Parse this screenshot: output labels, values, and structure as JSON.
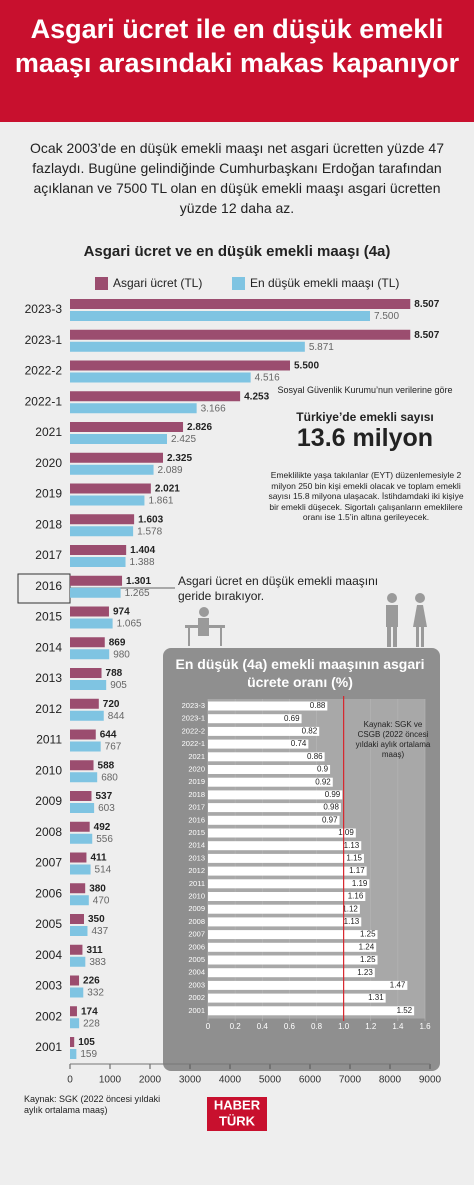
{
  "header": {
    "title": "Asgari ücret ile en düşük emekli maaşı arasındaki makas kapanıyor"
  },
  "intro": "Ocak 2003’de en düşük emekli maaşı net asgari ücretten yüzde 47 fazlaydı. Bugüne gelindiğinde Cumhurbaşkanı Erdoğan tarafından açıklanan ve 7500 TL olan en düşük emekli maaşı asgari ücretten yüzde 12 daha az.",
  "chart_data": [
    {
      "type": "hbar",
      "title": "Asgari ücret ve en düşük emekli maaşı (4a)",
      "categories": [
        "2023-3",
        "2023-1",
        "2022-2",
        "2022-1",
        "2021",
        "2020",
        "2019",
        "2018",
        "2017",
        "2016",
        "2015",
        "2014",
        "2013",
        "2012",
        "2011",
        "2010",
        "2009",
        "2008",
        "2007",
        "2006",
        "2005",
        "2004",
        "2003",
        "2002",
        "2001"
      ],
      "series": [
        {
          "name": "Asgari ücret (TL)",
          "color": "#9b4d6f",
          "values": [
            8507,
            8507,
            5500,
            4253,
            2826,
            2325,
            2021,
            1603,
            1404,
            1301,
            974,
            869,
            788,
            720,
            644,
            588,
            537,
            492,
            411,
            380,
            350,
            311,
            226,
            174,
            105
          ],
          "value_labels": [
            "8.507",
            "8.507",
            "5.500",
            "4.253",
            "2.826",
            "2.325",
            "2.021",
            "1.603",
            "1.404",
            "1.301",
            "974",
            "869",
            "788",
            "720",
            "644",
            "588",
            "537",
            "492",
            "411",
            "380",
            "350",
            "311",
            "226",
            "174",
            "105"
          ]
        },
        {
          "name": "En düşük emekli maaşı (TL)",
          "color": "#7fc4e2",
          "values": [
            7500,
            5871,
            4516,
            3166,
            2425,
            2089,
            1861,
            1578,
            1388,
            1265,
            1065,
            980,
            905,
            844,
            767,
            680,
            603,
            556,
            514,
            470,
            437,
            383,
            332,
            228,
            159
          ],
          "value_labels": [
            "7.500",
            "5.871",
            "4.516",
            "3.166",
            "2.425",
            "2.089",
            "1.861",
            "1.578",
            "1.388",
            "1.265",
            "1.065",
            "980",
            "905",
            "844",
            "767",
            "680",
            "603",
            "556",
            "514",
            "470",
            "437",
            "383",
            "332",
            "228",
            "159"
          ]
        }
      ],
      "xlim": [
        0,
        9000
      ],
      "xticks": [
        0,
        1000,
        2000,
        3000,
        4000,
        5000,
        6000,
        7000,
        8000,
        9000
      ],
      "annotation": "Asgari ücret en düşük emekli maaşını geride bırakıyor.",
      "highlight": "2016"
    },
    {
      "type": "hbar",
      "title": "En düşük (4a) emekli maaşının asgari ücrete oranı (%)",
      "categories": [
        "2023-3",
        "2023-1",
        "2022-2",
        "2022-1",
        "2021",
        "2020",
        "2019",
        "2018",
        "2017",
        "2016",
        "2015",
        "2014",
        "2013",
        "2012",
        "2011",
        "2010",
        "2009",
        "2008",
        "2007",
        "2006",
        "2005",
        "2004",
        "2003",
        "2002",
        "2001"
      ],
      "values": [
        0.88,
        0.69,
        0.82,
        0.74,
        0.86,
        0.9,
        0.92,
        0.99,
        0.98,
        0.97,
        1.09,
        1.13,
        1.15,
        1.17,
        1.19,
        1.16,
        1.12,
        1.13,
        1.25,
        1.24,
        1.25,
        1.23,
        1.47,
        1.31,
        1.52
      ],
      "color": "#ffffff",
      "reference_line": 1,
      "reference_color": "#d7262e",
      "xlim": [
        0,
        1.6
      ],
      "xticks": [
        0,
        0.2,
        0.4,
        0.6,
        0.8,
        {
          "value": 1,
          "label": "1.0"
        },
        1.2,
        1.4,
        1.6
      ],
      "note": "Kaynak: SGK ve CSGB (2022 öncesi yıldaki aylık ortalama maaş)"
    }
  ],
  "info": {
    "source": "Sosyal Güvenlik Kurumu’nun verilerine göre",
    "label": "Türkiye’de emekli sayısı",
    "figure": "13.6 milyon",
    "text": "Emeklilikte yaşa takılanlar (EYT) düzenlemesiyle 2 milyon 250 bin kişi emekli olacak ve toplam emekli sayısı 15.8 milyona ulaşacak. İstihdamdaki iki kişiye bir emekli düşecek. Sigortalı çalışanların emeklilere oranı ise 1.5’in altına gerileyecek."
  },
  "footer": {
    "source": "Kaynak: SGK (2022 öncesi yıldaki aylık ortalama maaş)",
    "logo_top": "HABER",
    "logo_bottom": "TÜRK"
  }
}
